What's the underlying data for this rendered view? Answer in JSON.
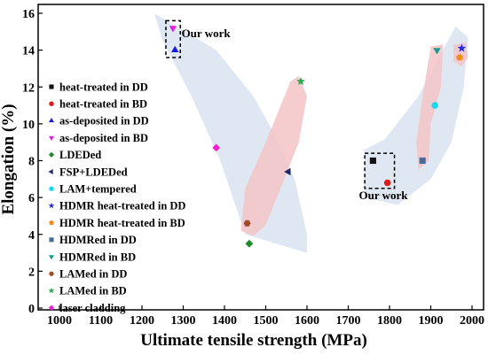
{
  "chart_data": {
    "type": "scatter",
    "title": "",
    "xlabel": "Ultimate tensile strength (MPa)",
    "ylabel": "Elongation (%)",
    "xlim": [
      950,
      2000
    ],
    "ylim": [
      0,
      16.5
    ],
    "xticks": [
      1000,
      1100,
      1200,
      1300,
      1400,
      1500,
      1600,
      1700,
      1800,
      1900,
      2000
    ],
    "yticks": [
      0,
      2,
      4,
      6,
      8,
      10,
      12,
      14,
      16
    ],
    "grid": false,
    "legend_position": "left",
    "series": [
      {
        "name": "heat-treated in DD",
        "marker": "square",
        "color": "#111111",
        "points": [
          [
            1760,
            8.0
          ]
        ]
      },
      {
        "name": "heat-treated in BD",
        "marker": "circle",
        "color": "#e01b1b",
        "points": [
          [
            1795,
            6.8
          ]
        ]
      },
      {
        "name": "as-deposited in DD",
        "marker": "triangle-up",
        "color": "#1a1adc",
        "points": [
          [
            1280,
            14.0
          ]
        ]
      },
      {
        "name": "as-deposited in BD",
        "marker": "triangle-down",
        "color": "#e020e0",
        "points": [
          [
            1275,
            15.2
          ]
        ]
      },
      {
        "name": "LDEDed",
        "marker": "diamond",
        "color": "#1a8a2a",
        "points": [
          [
            1460,
            3.5
          ]
        ]
      },
      {
        "name": "FSP+LDEDed",
        "marker": "triangle-left",
        "color": "#1b2a6b",
        "points": [
          [
            1555,
            7.4
          ]
        ]
      },
      {
        "name": "LAM+tempered",
        "marker": "circle",
        "color": "#1ad8f0",
        "points": [
          [
            1910,
            11.0
          ]
        ]
      },
      {
        "name": "HDMR heat-treated in DD",
        "marker": "star",
        "color": "#2a2ad8",
        "points": [
          [
            1975,
            14.1
          ]
        ]
      },
      {
        "name": "HDMR heat-treated in BD",
        "marker": "pentagon",
        "color": "#f08a1a",
        "points": [
          [
            1970,
            13.6
          ]
        ]
      },
      {
        "name": "HDMRed in DD",
        "marker": "square",
        "color": "#4a6a9a",
        "points": [
          [
            1880,
            8.0
          ]
        ]
      },
      {
        "name": "HDMRed in BD",
        "marker": "triangle-down",
        "color": "#1a9a8a",
        "points": [
          [
            1915,
            14.0
          ]
        ]
      },
      {
        "name": "LAMed in DD",
        "marker": "hexagon",
        "color": "#a04a2a",
        "points": [
          [
            1455,
            4.6
          ]
        ]
      },
      {
        "name": "LAMed in BD",
        "marker": "star",
        "color": "#2aa84a",
        "points": [
          [
            1585,
            12.3
          ]
        ]
      },
      {
        "name": "laser cladding",
        "marker": "diamond",
        "color": "#f020d0",
        "points": [
          [
            1380,
            8.7
          ]
        ]
      }
    ],
    "annotations": [
      {
        "text": "Our work",
        "at": [
          1355,
          14.7
        ],
        "box": {
          "x": [
            1258,
            1293
          ],
          "y": [
            13.6,
            15.6
          ]
        }
      },
      {
        "text": "Our work",
        "at": [
          1785,
          5.9
        ],
        "box": {
          "x": [
            1740,
            1812
          ],
          "y": [
            6.5,
            8.4
          ]
        }
      }
    ],
    "regions": [
      {
        "kind": "blue",
        "points": [
          [
            1230,
            16.0
          ],
          [
            1380,
            14.0
          ],
          [
            1470,
            11.5
          ],
          [
            1520,
            9.5
          ],
          [
            1570,
            7.0
          ],
          [
            1600,
            4.0
          ],
          [
            1600,
            3.0
          ],
          [
            1450,
            4.0
          ],
          [
            1390,
            8.0
          ],
          [
            1320,
            11.5
          ],
          [
            1250,
            14.5
          ],
          [
            1230,
            16.0
          ]
        ]
      },
      {
        "kind": "blue",
        "points": [
          [
            1740,
            8.6
          ],
          [
            1790,
            9.2
          ],
          [
            1870,
            11.5
          ],
          [
            1960,
            15.3
          ],
          [
            1990,
            14.7
          ],
          [
            1980,
            12.0
          ],
          [
            1950,
            9.0
          ],
          [
            1900,
            7.0
          ],
          [
            1820,
            5.6
          ],
          [
            1740,
            6.0
          ],
          [
            1740,
            8.6
          ]
        ]
      },
      {
        "kind": "pink",
        "points": [
          [
            1580,
            12.6
          ],
          [
            1600,
            11.5
          ],
          [
            1580,
            9.0
          ],
          [
            1545,
            7.0
          ],
          [
            1500,
            4.5
          ],
          [
            1470,
            3.9
          ],
          [
            1440,
            4.2
          ],
          [
            1450,
            6.5
          ],
          [
            1500,
            9.0
          ],
          [
            1560,
            12.3
          ],
          [
            1580,
            12.6
          ]
        ]
      },
      {
        "kind": "pink",
        "points": [
          [
            1900,
            14.2
          ],
          [
            1930,
            14.3
          ],
          [
            1925,
            12.0
          ],
          [
            1900,
            10.0
          ],
          [
            1895,
            8.0
          ],
          [
            1870,
            7.5
          ],
          [
            1865,
            9.0
          ],
          [
            1880,
            11.5
          ],
          [
            1900,
            14.2
          ]
        ]
      },
      {
        "kind": "pink",
        "points": [
          [
            1955,
            14.3
          ],
          [
            1985,
            14.4
          ],
          [
            1990,
            13.6
          ],
          [
            1975,
            13.1
          ],
          [
            1955,
            13.4
          ],
          [
            1955,
            14.3
          ]
        ]
      }
    ]
  }
}
